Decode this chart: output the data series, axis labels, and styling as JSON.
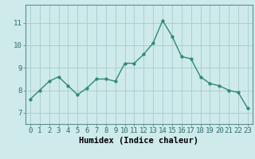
{
  "x": [
    0,
    1,
    2,
    3,
    4,
    5,
    6,
    7,
    8,
    9,
    10,
    11,
    12,
    13,
    14,
    15,
    16,
    17,
    18,
    19,
    20,
    21,
    22,
    23
  ],
  "y": [
    7.6,
    8.0,
    8.4,
    8.6,
    8.2,
    7.8,
    8.1,
    8.5,
    8.5,
    8.4,
    9.2,
    9.2,
    9.6,
    10.1,
    11.1,
    10.4,
    9.5,
    9.4,
    8.6,
    8.3,
    8.2,
    8.0,
    7.9,
    7.2
  ],
  "line_color": "#2e8b73",
  "marker": "o",
  "markersize": 2.5,
  "linewidth": 1.0,
  "bg_color": "#ceeaea",
  "grid_color_major": "#a8cccc",
  "grid_color_minor": "#bcd8d8",
  "xlabel": "Humidex (Indice chaleur)",
  "ylim": [
    6.5,
    11.8
  ],
  "xlim": [
    -0.5,
    23.5
  ],
  "yticks": [
    7,
    8,
    9,
    10,
    11
  ],
  "xticks": [
    0,
    1,
    2,
    3,
    4,
    5,
    6,
    7,
    8,
    9,
    10,
    11,
    12,
    13,
    14,
    15,
    16,
    17,
    18,
    19,
    20,
    21,
    22,
    23
  ],
  "tick_fontsize": 6.5,
  "xlabel_fontsize": 7.5
}
